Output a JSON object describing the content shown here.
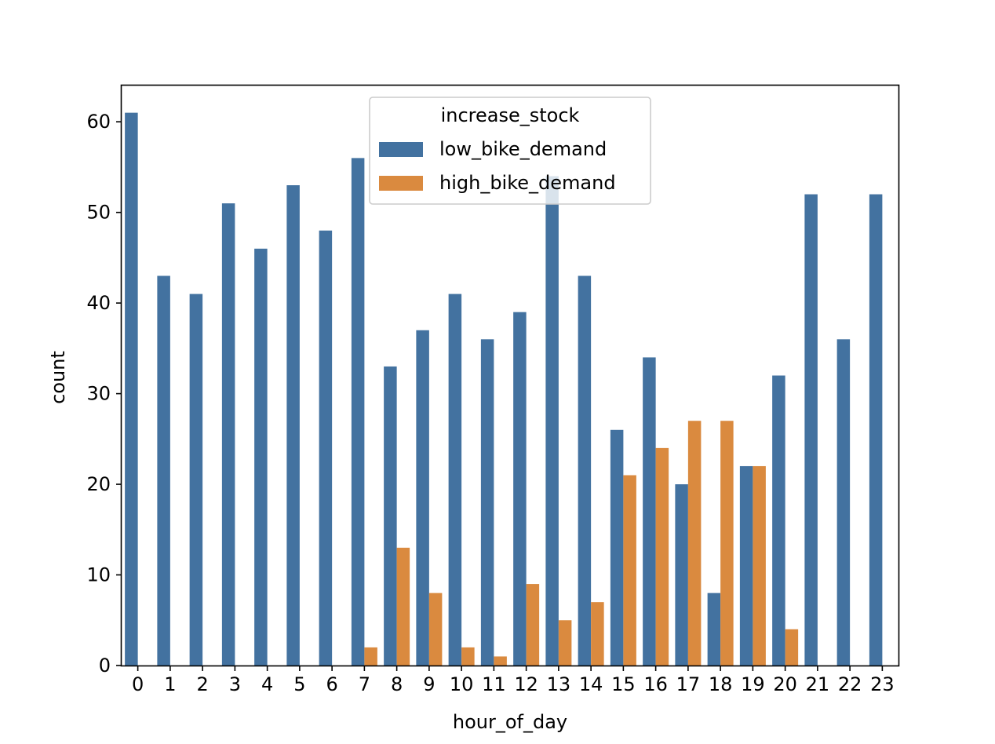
{
  "chart_data": {
    "type": "bar",
    "xlabel": "hour_of_day",
    "ylabel": "count",
    "categories": [
      "0",
      "1",
      "2",
      "3",
      "4",
      "5",
      "6",
      "7",
      "8",
      "9",
      "10",
      "11",
      "12",
      "13",
      "14",
      "15",
      "16",
      "17",
      "18",
      "19",
      "20",
      "21",
      "22",
      "23"
    ],
    "series": [
      {
        "name": "low_bike_demand",
        "color": "#4372a0",
        "values": [
          61,
          43,
          41,
          51,
          46,
          53,
          48,
          56,
          33,
          37,
          41,
          36,
          39,
          54,
          43,
          26,
          34,
          20,
          8,
          22,
          32,
          52,
          36,
          52
        ]
      },
      {
        "name": "high_bike_demand",
        "color": "#da8a3f",
        "values": [
          0,
          0,
          0,
          0,
          0,
          0,
          0,
          2,
          13,
          8,
          2,
          1,
          9,
          5,
          7,
          21,
          24,
          27,
          27,
          22,
          4,
          0,
          0,
          0
        ]
      }
    ],
    "ylim": [
      0,
      64
    ],
    "yticks": [
      0,
      10,
      20,
      30,
      40,
      50,
      60
    ],
    "grid": false,
    "legend": {
      "title": "increase_stock",
      "placement": "upper center"
    }
  }
}
